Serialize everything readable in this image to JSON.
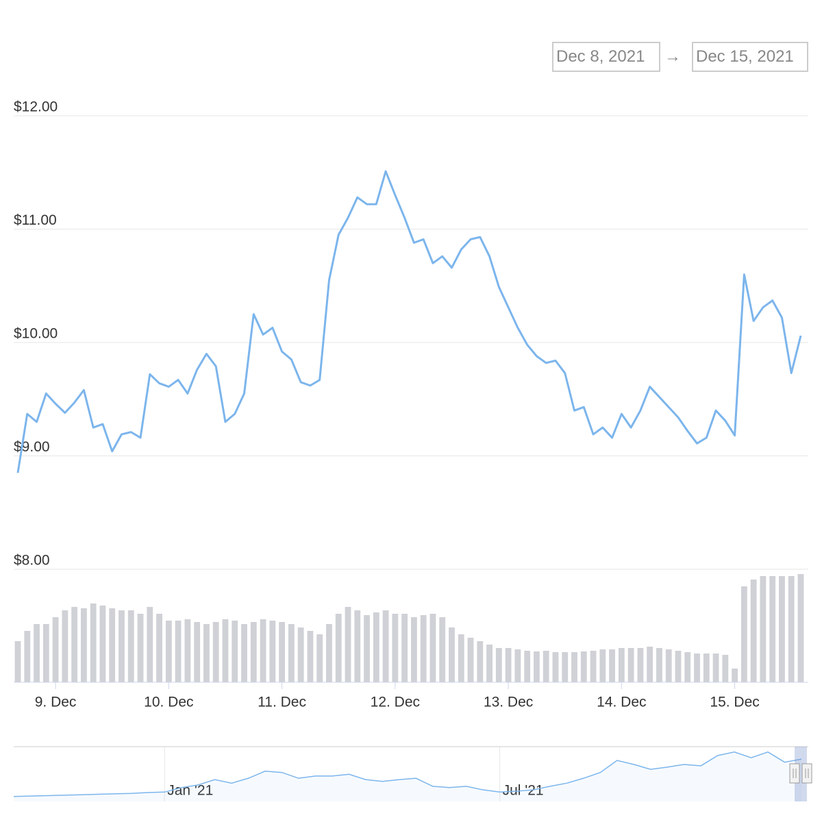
{
  "range_selector": {
    "from": "Dec 8, 2021",
    "separator": "→",
    "to": "Dec 15, 2021"
  },
  "chart_data": {
    "type": "line",
    "categories": [
      null,
      null,
      null,
      null,
      "9. Dec",
      null,
      null,
      null,
      null,
      null,
      null,
      null,
      null,
      null,
      null,
      null,
      "10. Dec",
      null,
      null,
      null,
      null,
      null,
      null,
      null,
      null,
      null,
      null,
      null,
      "11. Dec",
      null,
      null,
      null,
      null,
      null,
      null,
      null,
      null,
      null,
      null,
      null,
      "12. Dec",
      null,
      null,
      null,
      null,
      null,
      null,
      null,
      null,
      null,
      null,
      null,
      "13. Dec",
      null,
      null,
      null,
      null,
      null,
      null,
      null,
      null,
      null,
      null,
      null,
      "14. Dec",
      null,
      null,
      null,
      null,
      null,
      null,
      null,
      null,
      null,
      null,
      null,
      "15. Dec",
      null,
      null,
      null,
      null,
      null,
      null,
      null
    ],
    "series": [
      {
        "color": "#7cb5ec",
        "values": [
          8.85,
          9.37,
          9.3,
          9.55,
          9.46,
          9.38,
          9.47,
          9.58,
          9.25,
          9.28,
          9.04,
          9.19,
          9.21,
          9.16,
          9.72,
          9.64,
          9.61,
          9.67,
          9.55,
          9.76,
          9.9,
          9.79,
          9.3,
          9.37,
          9.55,
          10.25,
          10.07,
          10.13,
          9.92,
          9.85,
          9.65,
          9.62,
          9.67,
          10.55,
          10.95,
          11.1,
          11.28,
          11.22,
          11.22,
          11.51,
          11.3,
          11.1,
          10.88,
          10.91,
          10.7,
          10.76,
          10.66,
          10.82,
          10.91,
          10.93,
          10.76,
          10.49,
          10.31,
          10.13,
          9.98,
          9.88,
          9.82,
          9.84,
          9.73,
          9.4,
          9.43,
          9.19,
          9.25,
          9.16,
          9.37,
          9.25,
          9.4,
          9.61,
          9.52,
          9.43,
          9.34,
          9.22,
          9.11,
          9.16,
          9.4,
          9.31,
          9.18,
          10.6,
          10.19,
          10.31,
          10.37,
          10.22,
          9.73,
          10.06
        ]
      },
      {
        "type": "column",
        "color": "#cfd1d6",
        "values": [
          60,
          75,
          85,
          85,
          95,
          105,
          110,
          108,
          115,
          112,
          108,
          105,
          105,
          100,
          110,
          100,
          90,
          90,
          92,
          88,
          85,
          88,
          92,
          90,
          85,
          88,
          92,
          90,
          88,
          85,
          80,
          75,
          70,
          85,
          100,
          110,
          105,
          98,
          102,
          105,
          100,
          100,
          95,
          98,
          100,
          95,
          80,
          70,
          65,
          60,
          55,
          50,
          50,
          48,
          46,
          45,
          46,
          44,
          44,
          44,
          45,
          46,
          48,
          48,
          50,
          50,
          50,
          52,
          50,
          48,
          46,
          44,
          42,
          42,
          42,
          40,
          20,
          140,
          150,
          155,
          155,
          155,
          155,
          158
        ]
      }
    ],
    "ylim": [
      8,
      12
    ],
    "yticks": [
      {
        "value": 8,
        "label": "$8.00"
      },
      {
        "value": 9,
        "label": "$9.00"
      },
      {
        "value": 10,
        "label": "$10.00"
      },
      {
        "value": 11,
        "label": "$11.00"
      },
      {
        "value": 12,
        "label": "$12.00"
      }
    ],
    "grid": true
  },
  "navigator": {
    "color": "#7cb5ec",
    "categories": [
      null,
      null,
      null,
      null,
      null,
      null,
      null,
      null,
      null,
      "Jan '21",
      null,
      null,
      null,
      null,
      null,
      null,
      null,
      null,
      null,
      null,
      null,
      null,
      null,
      null,
      null,
      null,
      null,
      null,
      null,
      "Jul '21",
      null,
      null,
      null,
      null,
      null,
      null,
      null,
      null,
      null,
      null,
      null,
      null,
      null,
      null,
      null,
      null,
      null,
      null
    ],
    "values": [
      0.8,
      0.9,
      1.0,
      1.1,
      1.2,
      1.3,
      1.4,
      1.5,
      1.7,
      1.8,
      2.8,
      3.4,
      4.6,
      3.8,
      4.9,
      6.5,
      6.2,
      4.9,
      5.4,
      5.4,
      5.8,
      4.6,
      4.2,
      4.6,
      4.9,
      3.1,
      2.8,
      3.1,
      2.3,
      1.8,
      2.0,
      2.3,
      3.1,
      3.8,
      4.9,
      6.2,
      8.9,
      8.0,
      6.9,
      7.4,
      8.0,
      7.7,
      10.0,
      10.8,
      9.5,
      10.8,
      8.5,
      9.2
    ]
  }
}
